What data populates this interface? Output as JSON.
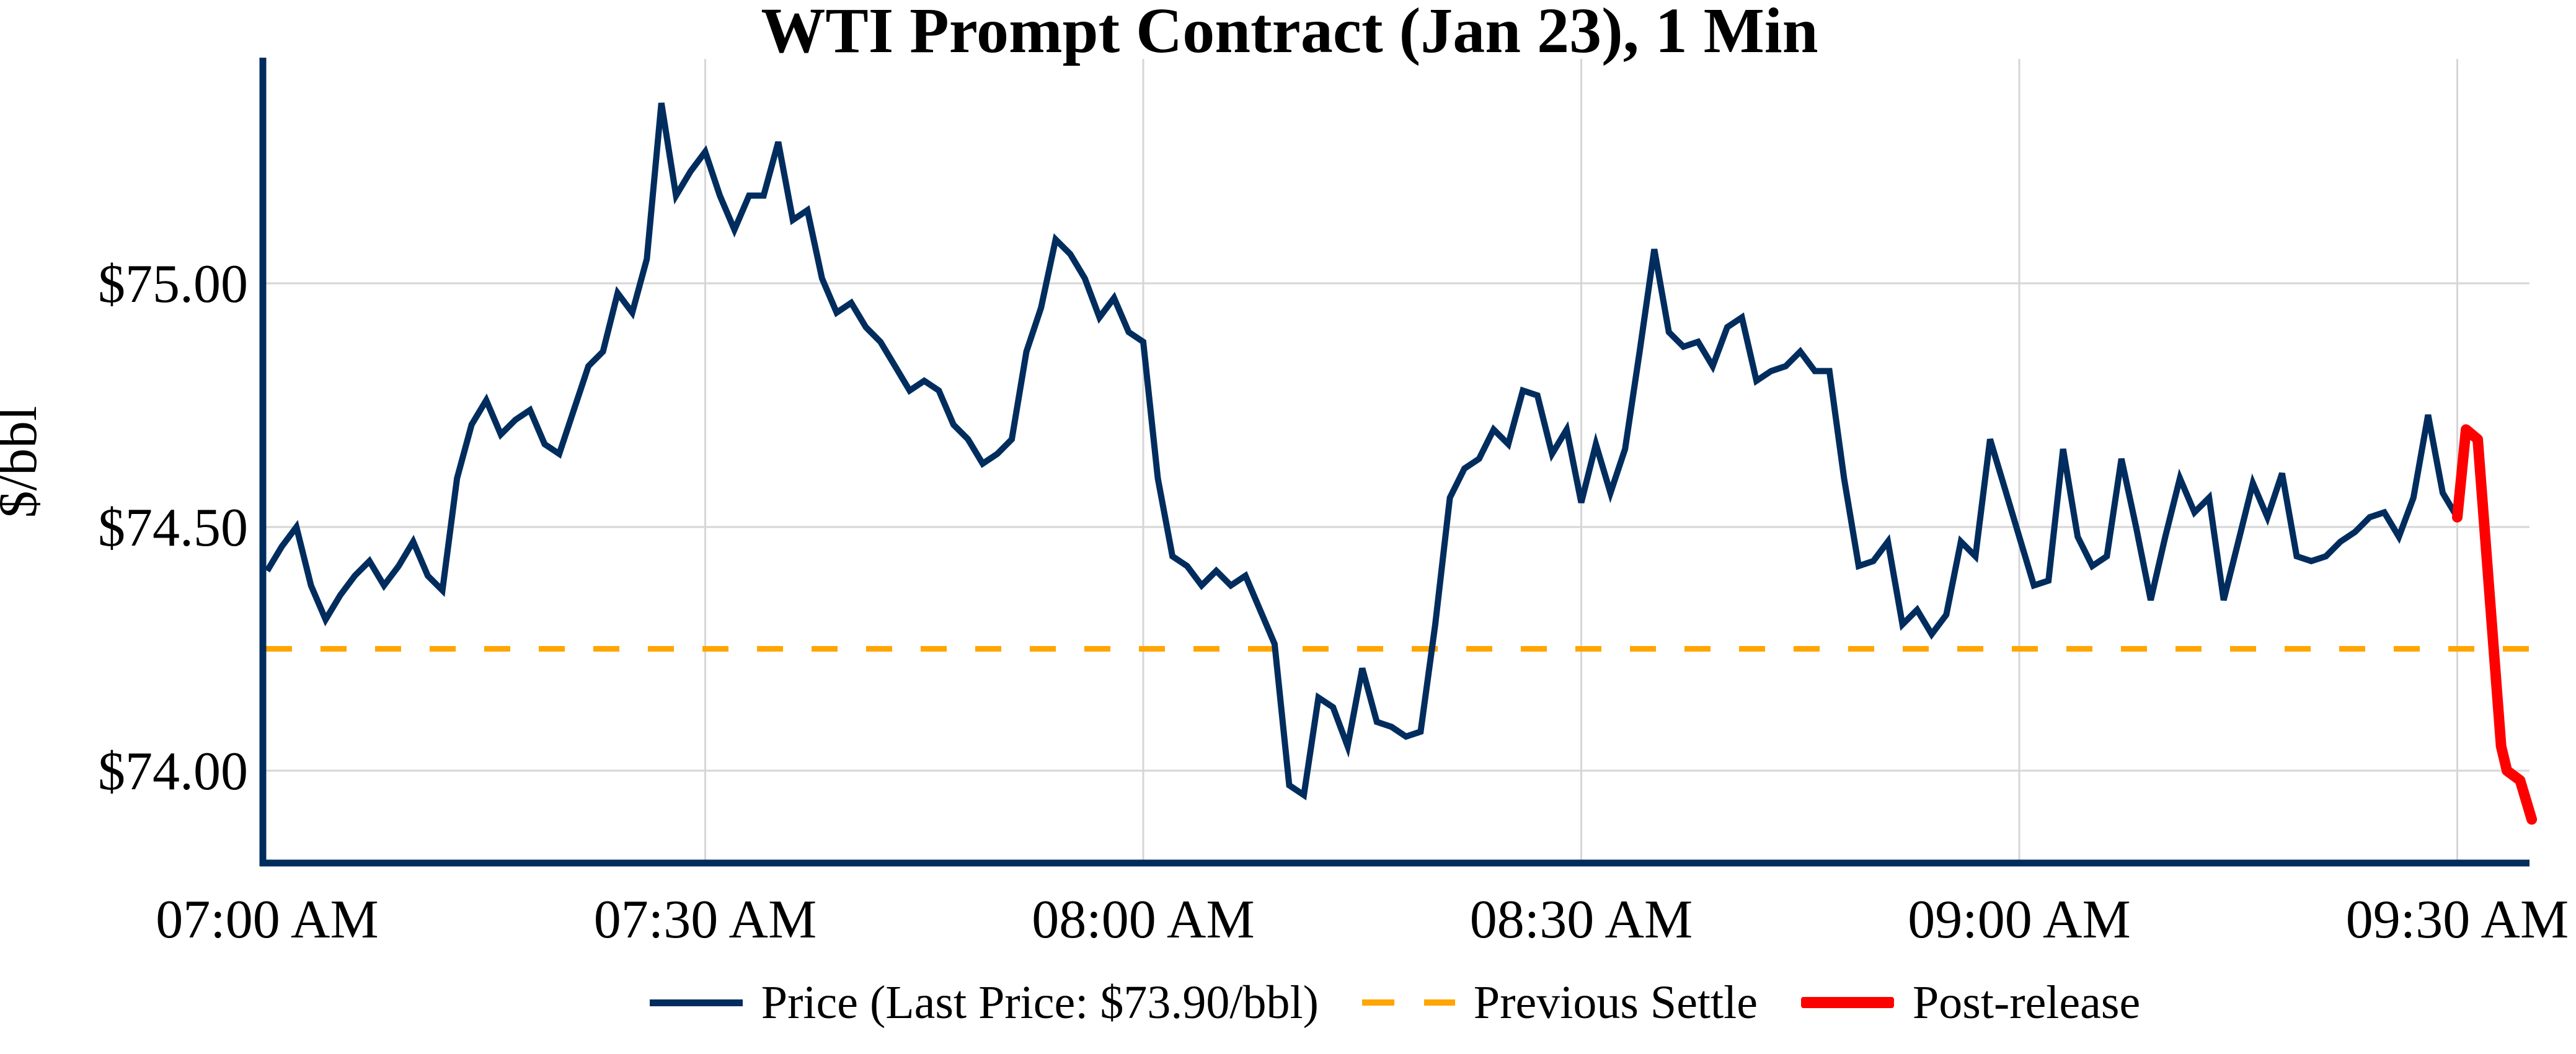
{
  "chart_data": {
    "type": "line",
    "title": "WTI Prompt Contract (Jan 23), 1 Min",
    "xlabel": "",
    "ylabel": "$/bbl",
    "x_unit": "minutes since 07:00 AM",
    "xlim": [
      0,
      155.5
    ],
    "ylim": [
      73.81,
      75.46
    ],
    "grid": true,
    "legend_position": "bottom-center",
    "x_ticks": [
      {
        "minute": 0,
        "label": "07:00 AM"
      },
      {
        "minute": 30,
        "label": "07:30 AM"
      },
      {
        "minute": 60,
        "label": "08:00 AM"
      },
      {
        "minute": 90,
        "label": "08:30 AM"
      },
      {
        "minute": 120,
        "label": "09:00 AM"
      },
      {
        "minute": 150,
        "label": "09:30 AM"
      }
    ],
    "y_ticks": [
      {
        "value": 75.0,
        "label": "$75.00"
      },
      {
        "value": 74.5,
        "label": "$74.50"
      },
      {
        "value": 74.0,
        "label": "$74.00"
      }
    ],
    "previous_settle": {
      "legend_label": "Previous Settle",
      "value": 74.25,
      "color": "#ffa500",
      "style": "dashed"
    },
    "last_price_text": "$73.90/bbl",
    "series": [
      {
        "name": "price",
        "legend_label": "Price (Last Price: $73.90/bbl)",
        "color": "#012d5e",
        "points": [
          [
            0,
            74.41
          ],
          [
            1,
            74.46
          ],
          [
            2,
            74.5
          ],
          [
            3,
            74.38
          ],
          [
            4,
            74.31
          ],
          [
            5,
            74.36
          ],
          [
            6,
            74.4
          ],
          [
            7,
            74.43
          ],
          [
            8,
            74.38
          ],
          [
            9,
            74.42
          ],
          [
            10,
            74.47
          ],
          [
            11,
            74.4
          ],
          [
            12,
            74.37
          ],
          [
            13,
            74.6
          ],
          [
            14,
            74.71
          ],
          [
            15,
            74.76
          ],
          [
            16,
            74.69
          ],
          [
            17,
            74.72
          ],
          [
            18,
            74.74
          ],
          [
            19,
            74.67
          ],
          [
            20,
            74.65
          ],
          [
            21,
            74.74
          ],
          [
            22,
            74.83
          ],
          [
            23,
            74.86
          ],
          [
            24,
            74.98
          ],
          [
            25,
            74.94
          ],
          [
            26,
            75.05
          ],
          [
            27,
            75.37
          ],
          [
            28,
            75.18
          ],
          [
            29,
            75.23
          ],
          [
            30,
            75.27
          ],
          [
            31,
            75.18
          ],
          [
            32,
            75.11
          ],
          [
            33,
            75.18
          ],
          [
            34,
            75.18
          ],
          [
            35,
            75.29
          ],
          [
            36,
            75.13
          ],
          [
            37,
            75.15
          ],
          [
            38,
            75.01
          ],
          [
            39,
            74.94
          ],
          [
            40,
            74.96
          ],
          [
            41,
            74.91
          ],
          [
            42,
            74.88
          ],
          [
            43,
            74.83
          ],
          [
            44,
            74.78
          ],
          [
            45,
            74.8
          ],
          [
            46,
            74.78
          ],
          [
            47,
            74.71
          ],
          [
            48,
            74.68
          ],
          [
            49,
            74.63
          ],
          [
            50,
            74.65
          ],
          [
            51,
            74.68
          ],
          [
            52,
            74.86
          ],
          [
            53,
            74.95
          ],
          [
            54,
            75.09
          ],
          [
            55,
            75.06
          ],
          [
            56,
            75.01
          ],
          [
            57,
            74.93
          ],
          [
            58,
            74.97
          ],
          [
            59,
            74.9
          ],
          [
            60,
            74.88
          ],
          [
            61,
            74.6
          ],
          [
            62,
            74.44
          ],
          [
            63,
            74.42
          ],
          [
            64,
            74.38
          ],
          [
            65,
            74.41
          ],
          [
            66,
            74.38
          ],
          [
            67,
            74.4
          ],
          [
            68,
            74.33
          ],
          [
            69,
            74.26
          ],
          [
            70,
            73.97
          ],
          [
            71,
            73.95
          ],
          [
            72,
            74.15
          ],
          [
            73,
            74.13
          ],
          [
            74,
            74.05
          ],
          [
            75,
            74.21
          ],
          [
            76,
            74.1
          ],
          [
            77,
            74.09
          ],
          [
            78,
            74.07
          ],
          [
            79,
            74.08
          ],
          [
            80,
            74.3
          ],
          [
            81,
            74.56
          ],
          [
            82,
            74.62
          ],
          [
            83,
            74.64
          ],
          [
            84,
            74.7
          ],
          [
            85,
            74.67
          ],
          [
            86,
            74.78
          ],
          [
            87,
            74.77
          ],
          [
            88,
            74.65
          ],
          [
            89,
            74.7
          ],
          [
            90,
            74.55
          ],
          [
            91,
            74.67
          ],
          [
            92,
            74.57
          ],
          [
            93,
            74.66
          ],
          [
            94,
            74.86
          ],
          [
            95,
            75.07
          ],
          [
            96,
            74.9
          ],
          [
            97,
            74.87
          ],
          [
            98,
            74.88
          ],
          [
            99,
            74.83
          ],
          [
            100,
            74.91
          ],
          [
            101,
            74.93
          ],
          [
            102,
            74.8
          ],
          [
            103,
            74.82
          ],
          [
            104,
            74.83
          ],
          [
            105,
            74.86
          ],
          [
            106,
            74.82
          ],
          [
            107,
            74.82
          ],
          [
            108,
            74.6
          ],
          [
            109,
            74.42
          ],
          [
            110,
            74.43
          ],
          [
            111,
            74.47
          ],
          [
            112,
            74.3
          ],
          [
            113,
            74.33
          ],
          [
            114,
            74.28
          ],
          [
            115,
            74.32
          ],
          [
            116,
            74.47
          ],
          [
            117,
            74.44
          ],
          [
            118,
            74.68
          ],
          [
            119,
            74.58
          ],
          [
            120,
            74.48
          ],
          [
            121,
            74.38
          ],
          [
            122,
            74.39
          ],
          [
            123,
            74.66
          ],
          [
            124,
            74.48
          ],
          [
            125,
            74.42
          ],
          [
            126,
            74.44
          ],
          [
            127,
            74.64
          ],
          [
            128,
            74.5
          ],
          [
            129,
            74.35
          ],
          [
            130,
            74.48
          ],
          [
            131,
            74.6
          ],
          [
            132,
            74.53
          ],
          [
            133,
            74.56
          ],
          [
            134,
            74.35
          ],
          [
            135,
            74.47
          ],
          [
            136,
            74.59
          ],
          [
            137,
            74.52
          ],
          [
            138,
            74.61
          ],
          [
            139,
            74.44
          ],
          [
            140,
            74.43
          ],
          [
            141,
            74.44
          ],
          [
            142,
            74.47
          ],
          [
            143,
            74.49
          ],
          [
            144,
            74.52
          ],
          [
            145,
            74.53
          ],
          [
            146,
            74.48
          ],
          [
            147,
            74.56
          ],
          [
            148,
            74.73
          ],
          [
            149,
            74.57
          ],
          [
            150,
            74.52
          ]
        ]
      },
      {
        "name": "post_release",
        "legend_label": "Post-release",
        "color": "#ff0000",
        "points": [
          [
            150,
            74.52
          ],
          [
            150.6,
            74.7
          ],
          [
            151.4,
            74.68
          ],
          [
            153.0,
            74.05
          ],
          [
            153.4,
            74.0
          ],
          [
            154.3,
            73.98
          ],
          [
            155.1,
            73.9
          ]
        ]
      }
    ]
  },
  "legend": {
    "price_label": "Price (Last Price: $73.90/bbl)",
    "settle_label": "Previous Settle",
    "post_label": "Post-release"
  }
}
